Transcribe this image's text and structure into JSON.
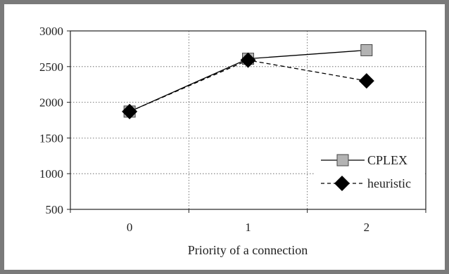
{
  "chart_data": {
    "type": "line",
    "xlabel": "Priority of a connection",
    "ylabel": "",
    "x": [
      "0",
      "1",
      "2"
    ],
    "ylim": [
      500,
      3000
    ],
    "yticks": [
      "500",
      "1000",
      "1500",
      "2000",
      "2500",
      "3000"
    ],
    "grid": "dotted",
    "legend_position": "bottom-right",
    "series": [
      {
        "name": "CPLEX",
        "values": [
          1870,
          2610,
          2730
        ],
        "marker": "square",
        "line": "solid",
        "color": "#b3b3b3"
      },
      {
        "name": "heuristic",
        "values": [
          1870,
          2590,
          2300
        ],
        "marker": "diamond",
        "line": "dashed",
        "color": "#000000"
      }
    ]
  }
}
